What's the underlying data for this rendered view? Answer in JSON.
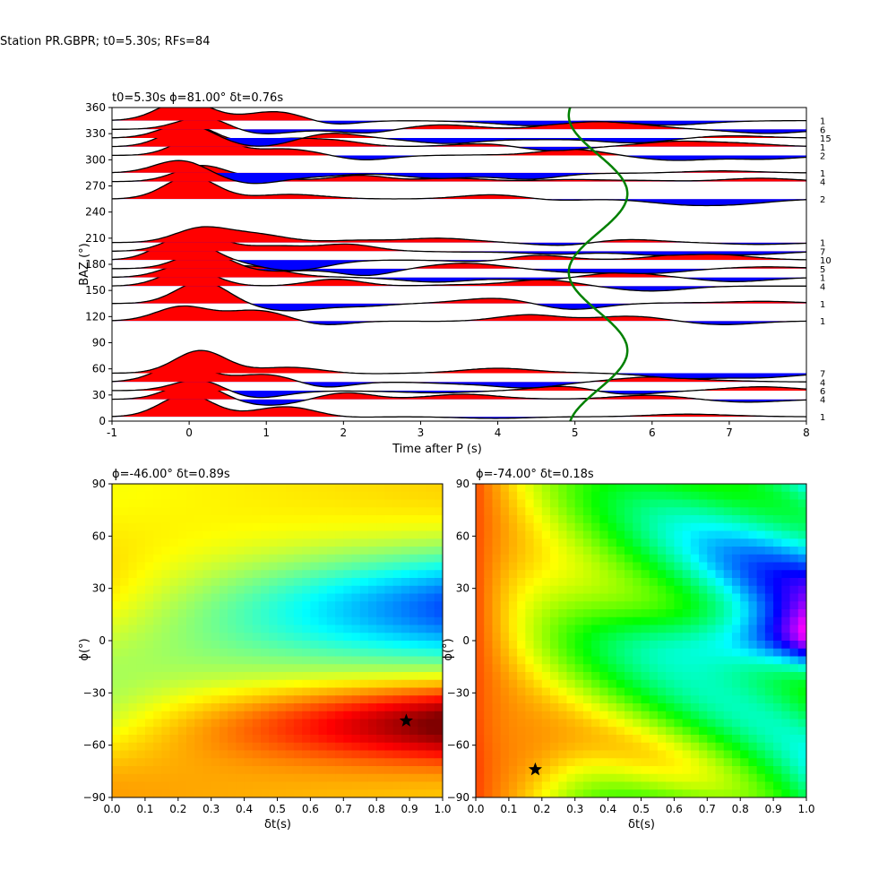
{
  "suptitle": "Station PR.GBPR; t0=5.30s; RFs=84",
  "chart_data": [
    {
      "type": "wiggle",
      "title": "t0=5.30s ϕ=81.00° δt=0.76s",
      "xlabel": "Time after P (s)",
      "ylabel": "BAZ (°)",
      "xlim": [
        -1,
        8
      ],
      "ylim": [
        0,
        360
      ],
      "xticks": [
        -1,
        0,
        1,
        2,
        3,
        4,
        5,
        6,
        7,
        8
      ],
      "yticks": [
        0,
        30,
        60,
        90,
        120,
        150,
        180,
        210,
        240,
        270,
        300,
        330,
        360
      ],
      "positive_fill": "#ff0000",
      "negative_fill": "#0000ff",
      "curve_color": "#008000",
      "traces": [
        {
          "baz": 5,
          "count": "1"
        },
        {
          "baz": 25,
          "count": "4"
        },
        {
          "baz": 35,
          "count": "6"
        },
        {
          "baz": 45,
          "count": "4"
        },
        {
          "baz": 55,
          "count": "7"
        },
        {
          "baz": 115,
          "count": "1"
        },
        {
          "baz": 135,
          "count": "1"
        },
        {
          "baz": 155,
          "count": "4"
        },
        {
          "baz": 165,
          "count": "1"
        },
        {
          "baz": 175,
          "count": "5"
        },
        {
          "baz": 185,
          "count": "10"
        },
        {
          "baz": 195,
          "count": "7"
        },
        {
          "baz": 205,
          "count": "1"
        },
        {
          "baz": 255,
          "count": "2"
        },
        {
          "baz": 275,
          "count": "4"
        },
        {
          "baz": 285,
          "count": "1"
        },
        {
          "baz": 305,
          "count": "2"
        },
        {
          "baz": 315,
          "count": "1"
        },
        {
          "baz": 325,
          "count": "15"
        },
        {
          "baz": 335,
          "count": "6"
        },
        {
          "baz": 345,
          "count": "1"
        }
      ],
      "green_curve": {
        "center_t": 5.3,
        "amplitude_t": 0.38,
        "period_deg": 180,
        "phase_deg": 81
      }
    },
    {
      "type": "heatmap",
      "title": "ϕ=-46.00° δt=0.89s",
      "xlabel": "δt(s)",
      "ylabel": "ϕ(°)",
      "xlim": [
        0,
        1
      ],
      "ylim": [
        -90,
        90
      ],
      "xticks": [
        "0.0",
        "0.1",
        "0.2",
        "0.3",
        "0.4",
        "0.5",
        "0.6",
        "0.7",
        "0.8",
        "0.9",
        "1.0"
      ],
      "yticks": [
        "−90",
        "−60",
        "−30",
        "0",
        "30",
        "60",
        "90"
      ],
      "colormap": "jet",
      "best": {
        "dt": 0.89,
        "phi": -46
      }
    },
    {
      "type": "heatmap",
      "title": "ϕ=-74.00° δt=0.18s",
      "xlabel": "δt(s)",
      "ylabel": "ϕ(°)",
      "xlim": [
        0,
        1
      ],
      "ylim": [
        -90,
        90
      ],
      "xticks": [
        "0.0",
        "0.1",
        "0.2",
        "0.3",
        "0.4",
        "0.5",
        "0.6",
        "0.7",
        "0.8",
        "0.9",
        "1.0"
      ],
      "yticks": [
        "−90",
        "−60",
        "−30",
        "0",
        "30",
        "60",
        "90"
      ],
      "colormap": "hsv",
      "best": {
        "dt": 0.18,
        "phi": -74
      }
    }
  ]
}
